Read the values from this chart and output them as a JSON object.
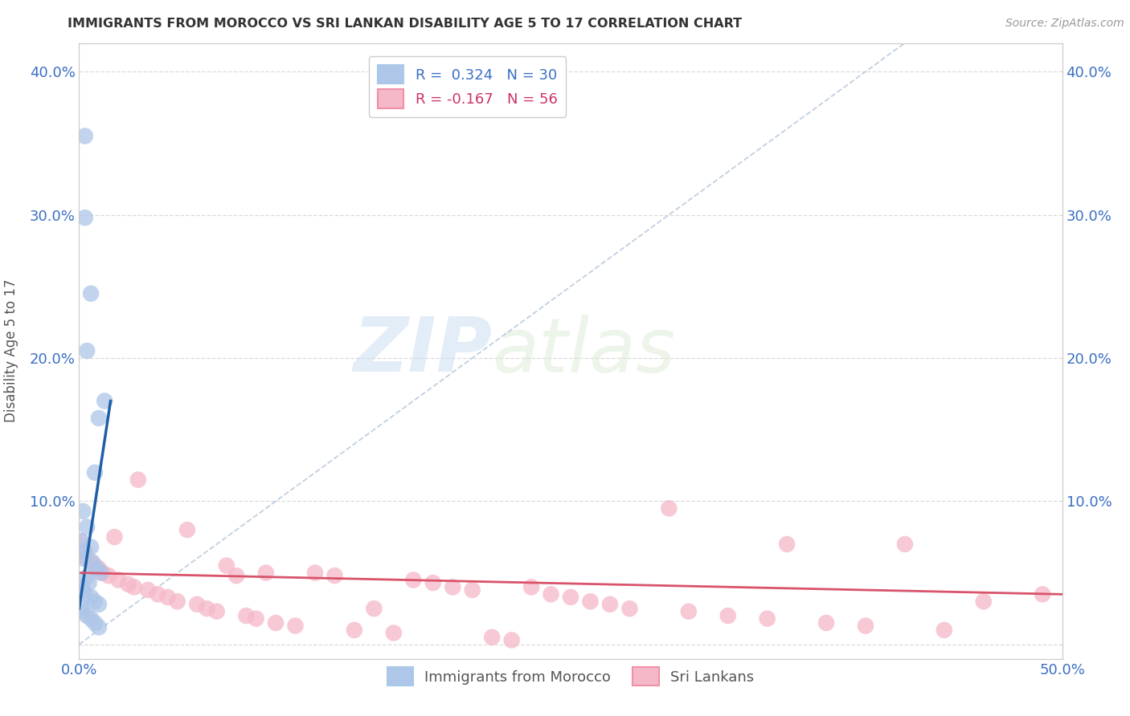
{
  "title": "IMMIGRANTS FROM MOROCCO VS SRI LANKAN DISABILITY AGE 5 TO 17 CORRELATION CHART",
  "source": "Source: ZipAtlas.com",
  "ylabel": "Disability Age 5 to 17",
  "xlim": [
    0.0,
    0.5
  ],
  "ylim": [
    -0.01,
    0.42
  ],
  "yticks": [
    0.0,
    0.1,
    0.2,
    0.3,
    0.4
  ],
  "ytick_labels_left": [
    "",
    "10.0%",
    "20.0%",
    "30.0%",
    "40.0%"
  ],
  "ytick_labels_right": [
    "",
    "10.0%",
    "20.0%",
    "30.0%",
    "40.0%"
  ],
  "xticks": [
    0.0,
    0.1,
    0.2,
    0.3,
    0.4,
    0.5
  ],
  "xtick_labels": [
    "0.0%",
    "",
    "",
    "",
    "",
    "50.0%"
  ],
  "blue_color": "#aec6e8",
  "pink_color": "#f5b8c8",
  "blue_line_color": "#1f5fa6",
  "pink_line_color": "#d9536a",
  "dash_color": "#b0c4d8",
  "blue_scatter": [
    [
      0.003,
      0.355
    ],
    [
      0.003,
      0.298
    ],
    [
      0.006,
      0.245
    ],
    [
      0.004,
      0.205
    ],
    [
      0.013,
      0.17
    ],
    [
      0.01,
      0.158
    ],
    [
      0.008,
      0.12
    ],
    [
      0.002,
      0.093
    ],
    [
      0.004,
      0.082
    ],
    [
      0.001,
      0.072
    ],
    [
      0.006,
      0.068
    ],
    [
      0.003,
      0.065
    ],
    [
      0.002,
      0.06
    ],
    [
      0.007,
      0.057
    ],
    [
      0.009,
      0.053
    ],
    [
      0.011,
      0.05
    ],
    [
      0.004,
      0.047
    ],
    [
      0.005,
      0.043
    ],
    [
      0.001,
      0.04
    ],
    [
      0.002,
      0.038
    ],
    [
      0.003,
      0.035
    ],
    [
      0.006,
      0.033
    ],
    [
      0.008,
      0.03
    ],
    [
      0.01,
      0.028
    ],
    [
      0.001,
      0.025
    ],
    [
      0.002,
      0.023
    ],
    [
      0.004,
      0.02
    ],
    [
      0.006,
      0.018
    ],
    [
      0.008,
      0.015
    ],
    [
      0.01,
      0.012
    ]
  ],
  "pink_scatter": [
    [
      0.001,
      0.072
    ],
    [
      0.002,
      0.065
    ],
    [
      0.004,
      0.06
    ],
    [
      0.006,
      0.058
    ],
    [
      0.008,
      0.055
    ],
    [
      0.01,
      0.053
    ],
    [
      0.012,
      0.05
    ],
    [
      0.015,
      0.048
    ],
    [
      0.018,
      0.075
    ],
    [
      0.02,
      0.045
    ],
    [
      0.025,
      0.042
    ],
    [
      0.028,
      0.04
    ],
    [
      0.03,
      0.115
    ],
    [
      0.035,
      0.038
    ],
    [
      0.04,
      0.035
    ],
    [
      0.045,
      0.033
    ],
    [
      0.05,
      0.03
    ],
    [
      0.055,
      0.08
    ],
    [
      0.06,
      0.028
    ],
    [
      0.065,
      0.025
    ],
    [
      0.07,
      0.023
    ],
    [
      0.075,
      0.055
    ],
    [
      0.08,
      0.048
    ],
    [
      0.085,
      0.02
    ],
    [
      0.09,
      0.018
    ],
    [
      0.095,
      0.05
    ],
    [
      0.1,
      0.015
    ],
    [
      0.11,
      0.013
    ],
    [
      0.12,
      0.05
    ],
    [
      0.13,
      0.048
    ],
    [
      0.14,
      0.01
    ],
    [
      0.15,
      0.025
    ],
    [
      0.16,
      0.008
    ],
    [
      0.17,
      0.045
    ],
    [
      0.18,
      0.043
    ],
    [
      0.19,
      0.04
    ],
    [
      0.2,
      0.038
    ],
    [
      0.21,
      0.005
    ],
    [
      0.22,
      0.003
    ],
    [
      0.23,
      0.04
    ],
    [
      0.24,
      0.035
    ],
    [
      0.25,
      0.033
    ],
    [
      0.26,
      0.03
    ],
    [
      0.27,
      0.028
    ],
    [
      0.28,
      0.025
    ],
    [
      0.3,
      0.095
    ],
    [
      0.31,
      0.023
    ],
    [
      0.33,
      0.02
    ],
    [
      0.35,
      0.018
    ],
    [
      0.36,
      0.07
    ],
    [
      0.38,
      0.015
    ],
    [
      0.4,
      0.013
    ],
    [
      0.42,
      0.07
    ],
    [
      0.44,
      0.01
    ],
    [
      0.46,
      0.03
    ],
    [
      0.49,
      0.035
    ]
  ],
  "blue_trend_x": [
    0.0,
    0.016
  ],
  "blue_trend_y": [
    0.025,
    0.17
  ],
  "pink_trend_x": [
    0.0,
    0.5
  ],
  "pink_trend_y": [
    0.05,
    0.035
  ],
  "dash_line_x": [
    0.0,
    0.42
  ],
  "dash_line_y": [
    0.0,
    0.42
  ],
  "watermark_zip": "ZIP",
  "watermark_atlas": "atlas",
  "title_fontsize": 11.5,
  "axis_tick_color": "#3a6fc4",
  "grid_color": "#d8d8d8",
  "background_color": "#ffffff"
}
